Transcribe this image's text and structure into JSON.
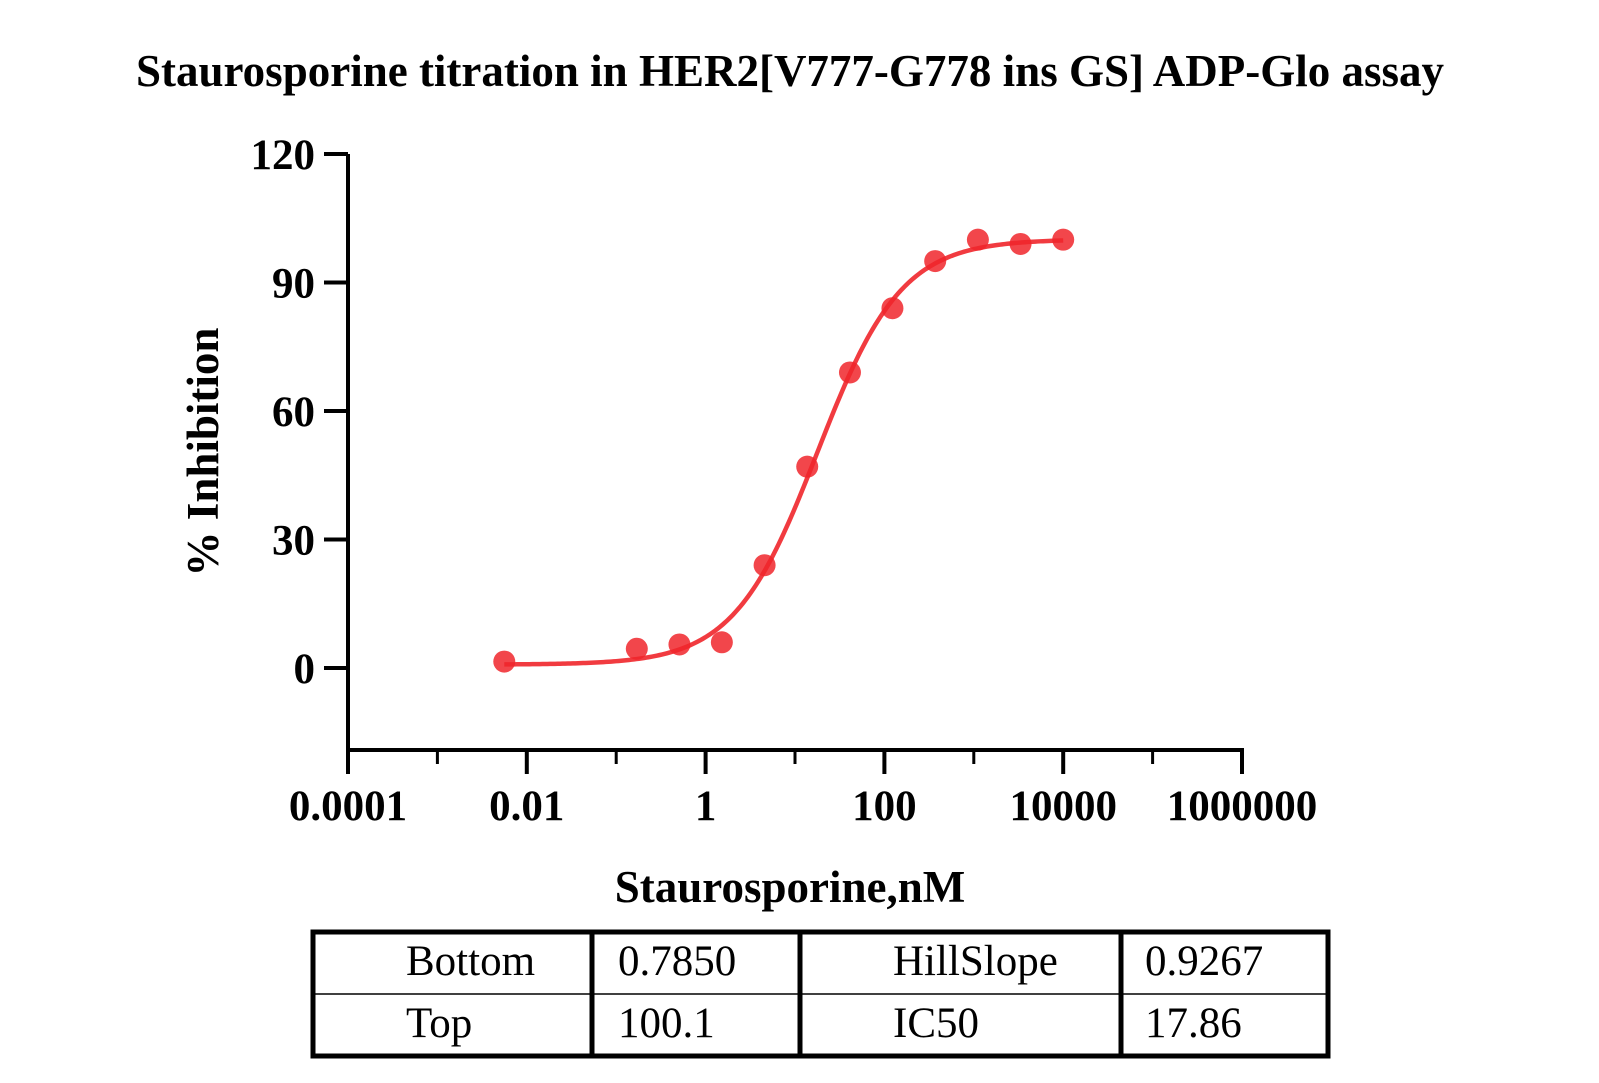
{
  "chart_data": {
    "type": "scatter",
    "title": "Staurosporine titration in HER2[V777-G778 ins GS] ADP-Glo assay",
    "xlabel": "Staurosporine,nM",
    "ylabel": "% Inhibition",
    "x_scale": "log",
    "xlim": [
      0.0001,
      1000000
    ],
    "ylim": [
      -20,
      120
    ],
    "x_ticks": [
      0.0001,
      0.01,
      1,
      100,
      10000,
      1000000
    ],
    "x_tick_labels": [
      "0.0001",
      "0.01",
      "1",
      "100",
      "10000",
      "1000000"
    ],
    "y_ticks": [
      0,
      30,
      60,
      90,
      120
    ],
    "y_tick_labels": [
      "0",
      "30",
      "60",
      "90",
      "120"
    ],
    "grid": false,
    "color": "#f0262b",
    "series": [
      {
        "x": [
          0.0056,
          0.17,
          0.51,
          1.52,
          4.57,
          13.7,
          41.2,
          123,
          370,
          1111,
          3333,
          10000
        ],
        "y": [
          1.5,
          4.5,
          5.5,
          6.0,
          24.0,
          47.0,
          69.0,
          84.0,
          95.0,
          100.0,
          99.0,
          100.0
        ]
      }
    ],
    "fit": {
      "model": "four-parameter logistic",
      "bottom": 0.785,
      "top": 100.1,
      "hill_slope": 0.9267,
      "ic50": 17.86
    }
  },
  "table": {
    "rows": [
      [
        "Bottom",
        "0.7850",
        "HillSlope",
        "0.9267"
      ],
      [
        "Top",
        "100.1",
        "IC50",
        "17.86"
      ]
    ]
  }
}
